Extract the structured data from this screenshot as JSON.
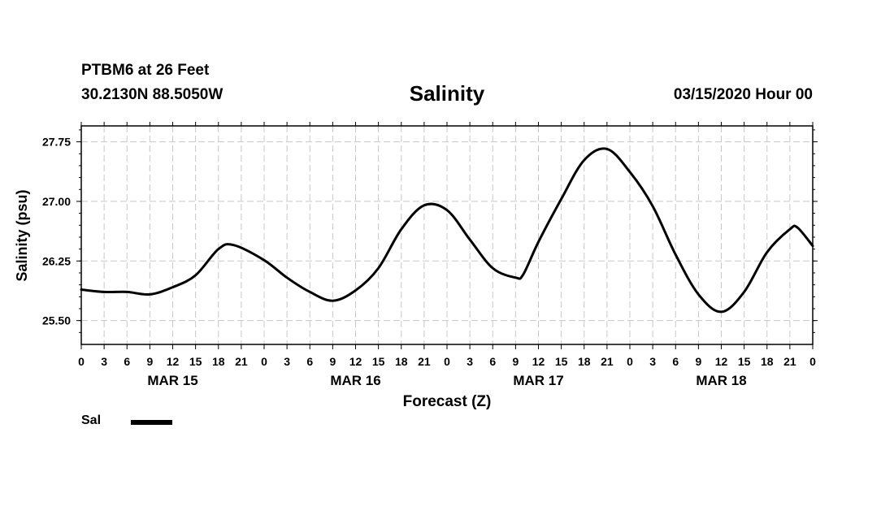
{
  "header": {
    "station": "PTBM6 at 26 Feet",
    "coords": "30.2130N 88.5050W",
    "title": "Salinity",
    "date": "03/15/2020 Hour 00"
  },
  "legend": {
    "label": "Sal",
    "color": "#000000"
  },
  "chart_data": {
    "type": "line",
    "title": "Salinity",
    "xlabel": "Forecast (Z)",
    "ylabel": "Salinity (psu)",
    "xlim": [
      0,
      96
    ],
    "ylim": [
      25.2,
      27.95
    ],
    "yticks": [
      25.5,
      26.25,
      27.0,
      27.75
    ],
    "ytick_labels": [
      "25.50",
      "26.25",
      "27.00",
      "27.75"
    ],
    "xtick_labels": [
      "0",
      "3",
      "6",
      "9",
      "12",
      "15",
      "18",
      "21",
      "0",
      "3",
      "6",
      "9",
      "12",
      "15",
      "18",
      "21",
      "0",
      "3",
      "6",
      "9",
      "12",
      "15",
      "18",
      "21",
      "0",
      "3",
      "6",
      "9",
      "12",
      "15",
      "18",
      "21",
      "0"
    ],
    "day_labels": [
      {
        "label": "MAR 15",
        "hour": 12
      },
      {
        "label": "MAR 16",
        "hour": 36
      },
      {
        "label": "MAR 17",
        "hour": 60
      },
      {
        "label": "MAR 18",
        "hour": 84
      }
    ],
    "grid": true,
    "series": [
      {
        "name": "Sal",
        "color": "#000000",
        "x": [
          0,
          3,
          6,
          9,
          12,
          15,
          18,
          20,
          24,
          27,
          30,
          33,
          36,
          39,
          42,
          45,
          48,
          51,
          54,
          57,
          58,
          60,
          63,
          66,
          69,
          72,
          75,
          78,
          81,
          84,
          87,
          90,
          93,
          94,
          96
        ],
        "y": [
          25.89,
          25.86,
          25.86,
          25.83,
          25.92,
          26.07,
          26.4,
          26.45,
          26.26,
          26.04,
          25.86,
          25.75,
          25.88,
          26.16,
          26.65,
          26.95,
          26.89,
          26.52,
          26.16,
          26.04,
          26.08,
          26.49,
          27.03,
          27.52,
          27.66,
          27.37,
          26.94,
          26.33,
          25.83,
          25.61,
          25.86,
          26.36,
          26.65,
          26.67,
          26.44
        ]
      }
    ]
  }
}
